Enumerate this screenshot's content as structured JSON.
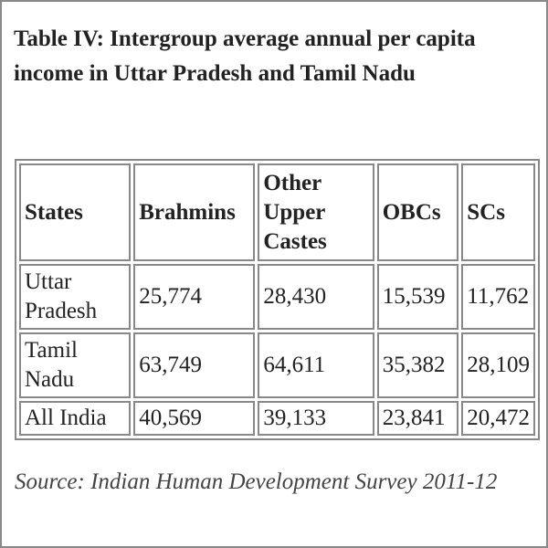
{
  "title": "Table IV: Intergroup average annual per capita income in Uttar Pradesh and Tamil Nadu",
  "table": {
    "header": [
      "States",
      "Brahmins",
      "Other Upper Castes",
      "OBCs",
      "SCs"
    ],
    "rows": [
      [
        "Uttar Pradesh",
        "25,774",
        "28,430",
        "15,539",
        "11,762"
      ],
      [
        "Tamil Nadu",
        "63,749",
        "64,611",
        "35,382",
        "28,109"
      ],
      [
        "All India",
        "40,569",
        "39,133",
        "23,841",
        "20,472"
      ]
    ]
  },
  "source": "Source: Indian Human Development Survey 2011-12"
}
